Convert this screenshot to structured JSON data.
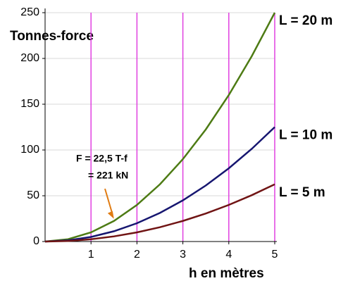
{
  "chart_data": {
    "type": "line",
    "y_label": "Tonnes-force",
    "x_label": "h en mètres",
    "x": [
      0,
      0.5,
      1,
      1.5,
      2,
      2.5,
      3,
      3.5,
      4,
      4.5,
      5
    ],
    "series": [
      {
        "name": "L = 20 m",
        "color": "#4d7b14",
        "values": [
          0,
          2.5,
          10,
          22.5,
          40,
          62.5,
          90,
          122.5,
          160,
          202.5,
          250
        ]
      },
      {
        "name": "L = 10 m",
        "color": "#161670",
        "values": [
          0,
          1.25,
          5,
          11.25,
          20,
          31.25,
          45,
          61.25,
          80,
          101.25,
          125
        ]
      },
      {
        "name": "L = 5 m",
        "color": "#701414",
        "values": [
          0,
          0.625,
          2.5,
          5.625,
          10,
          15.625,
          22.5,
          30.625,
          40,
          50.625,
          62.5
        ]
      }
    ],
    "xlim": [
      0,
      5
    ],
    "xticks": [
      1,
      2,
      3,
      4,
      5
    ],
    "ylim": [
      0,
      250
    ],
    "yticks": [
      0,
      50,
      100,
      150,
      200,
      250
    ],
    "grid": true,
    "annotation": {
      "text": [
        "F =  22,5 T-f",
        "= 221 kN"
      ],
      "x": 1.5,
      "y": 22.5,
      "color": "#e07b12"
    }
  }
}
